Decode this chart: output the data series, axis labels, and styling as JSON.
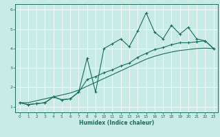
{
  "xlabel": "Humidex (Indice chaleur)",
  "ylabel": "",
  "bg_color": "#c8ebe6",
  "grid_color": "#ffffff",
  "line_color": "#1a6b5a",
  "xlim": [
    -0.5,
    23.5
  ],
  "ylim": [
    0.7,
    6.3
  ],
  "yticks": [
    1,
    2,
    3,
    4,
    5,
    6
  ],
  "xticks": [
    0,
    1,
    2,
    3,
    4,
    5,
    6,
    7,
    8,
    9,
    10,
    11,
    12,
    13,
    14,
    15,
    16,
    17,
    18,
    19,
    20,
    21,
    22,
    23
  ],
  "x_data": [
    0,
    1,
    2,
    3,
    4,
    5,
    6,
    7,
    8,
    9,
    10,
    11,
    12,
    13,
    14,
    15,
    16,
    17,
    18,
    19,
    20,
    21,
    22,
    23
  ],
  "y_main": [
    1.2,
    1.1,
    1.15,
    1.2,
    1.5,
    1.35,
    1.4,
    1.75,
    3.5,
    1.75,
    4.0,
    4.25,
    4.5,
    4.1,
    4.9,
    5.85,
    4.85,
    4.5,
    5.2,
    4.75,
    5.1,
    4.5,
    4.4,
    4.0
  ],
  "y_low": [
    1.2,
    1.1,
    1.15,
    1.2,
    1.5,
    1.35,
    1.4,
    1.75,
    2.4,
    2.55,
    2.75,
    2.9,
    3.1,
    3.25,
    3.55,
    3.75,
    3.95,
    4.05,
    4.2,
    4.3,
    4.3,
    4.35,
    4.4,
    4.0
  ],
  "y_trend": [
    1.2,
    1.2,
    1.3,
    1.4,
    1.5,
    1.6,
    1.7,
    1.85,
    2.05,
    2.25,
    2.45,
    2.65,
    2.85,
    3.05,
    3.25,
    3.45,
    3.6,
    3.72,
    3.82,
    3.9,
    3.95,
    4.0,
    4.02,
    4.0
  ]
}
